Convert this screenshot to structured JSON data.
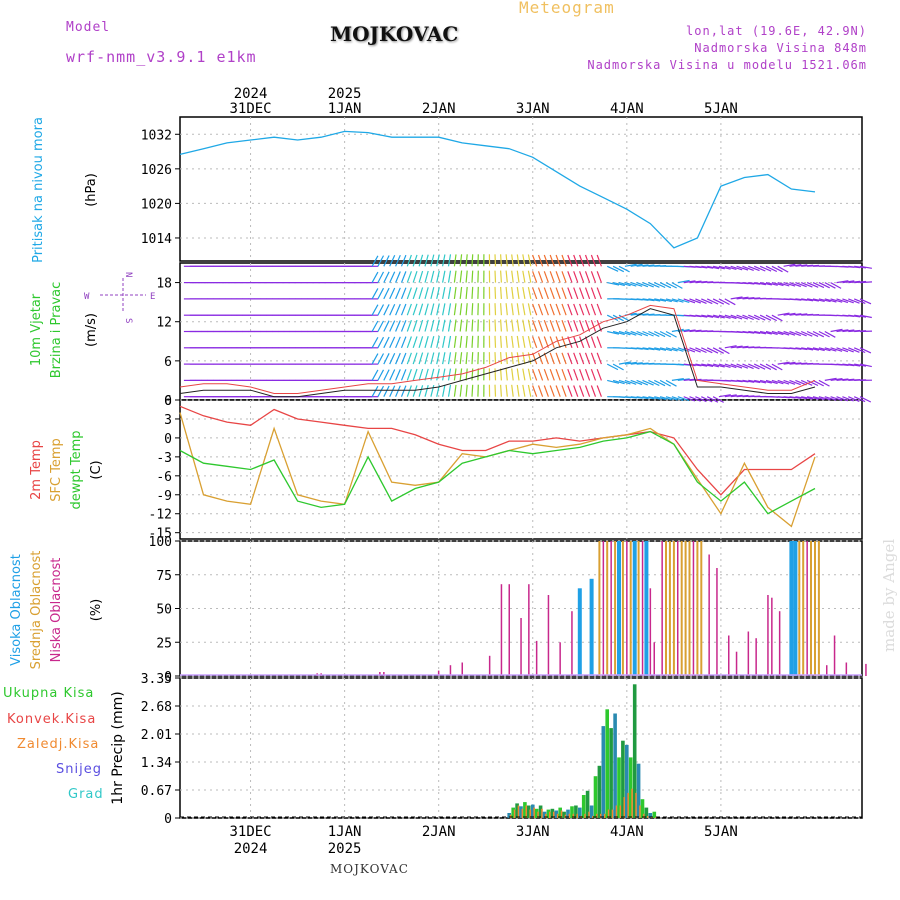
{
  "header": {
    "model_label": "Model",
    "model_value": "wrf-nmm_v3.9.1  e1km",
    "title": "MOJKOVAC",
    "meteogram_label": "Meteogram",
    "lonlat": "lon,lat (19.6E, 42.9N)",
    "elevation": "Nadmorska Visina 848m",
    "model_elevation": "Nadmorska Visina u modelu 1521.06m"
  },
  "footer": {
    "station": "MOJKOVAC",
    "credit": "made by Angel"
  },
  "colors": {
    "pressure": "#1fa8e6",
    "temp2m": "#e84545",
    "sfc": "#d9a032",
    "dewpt": "#2ec82e",
    "low_cloud": "#c8288c",
    "mid_cloud": "#d9a032",
    "high_cloud": "#1fa0e6",
    "total_precip": "#2ec82e",
    "conv_precip": "#e84545",
    "frz_precip": "#f08a30",
    "snow": "#5a4ee0",
    "grad": "#30c8c8"
  },
  "time_axis": {
    "top_labels": [
      {
        "day": "31DEC",
        "year": "2024"
      },
      {
        "day": "1JAN",
        "year": "2025"
      },
      {
        "day": "2JAN",
        "year": ""
      },
      {
        "day": "3JAN",
        "year": ""
      },
      {
        "day": "4JAN",
        "year": ""
      },
      {
        "day": "5JAN",
        "year": ""
      }
    ]
  },
  "panels": {
    "pressure": {
      "label": "Pritisak na nivou mora",
      "unit": "(hPa)"
    },
    "wind": {
      "label1": "10m Vjetar",
      "label2": "Brzina i Pravac",
      "unit": "(m/s)",
      "compass_n": "N",
      "compass_w": "W",
      "compass_e": "E",
      "compass_s": "S"
    },
    "temp": {
      "label1": "2m Temp",
      "label2": "SFC Temp",
      "label3": "dewpt Temp",
      "unit": "(C)"
    },
    "cloud": {
      "label1": "Visoka Oblacnost",
      "label2": "Srednja Oblacnost",
      "label3": "Niska Oblacnost",
      "unit": "(%)"
    },
    "precip": {
      "unit": "1hr Precip (mm)"
    }
  },
  "precip_legend": [
    "Ukupna Kisa",
    "Konvek.Kisa",
    "Zaledj.Kisa",
    "Snijeg",
    "Grad"
  ],
  "chart_data": [
    {
      "type": "line",
      "name": "pressure",
      "x_hours": [
        0,
        6,
        12,
        18,
        24,
        30,
        36,
        42,
        48,
        54,
        60,
        66,
        72,
        78,
        84,
        90,
        96,
        102,
        108,
        114,
        120,
        126,
        132,
        138,
        144,
        150,
        156,
        162
      ],
      "values": [
        1028.5,
        1029.5,
        1030.5,
        1031,
        1031.5,
        1031,
        1031.5,
        1032.5,
        1032.3,
        1031.5,
        1031.5,
        1031.5,
        1030.5,
        1030,
        1029.5,
        1028,
        1025.5,
        1023,
        1021,
        1019,
        1016.5,
        1012.3,
        1014,
        1023,
        1024.5,
        1025,
        1022.5,
        1022
      ],
      "ylim": [
        1010,
        1035
      ],
      "yticks": [
        1014,
        1020,
        1026,
        1032
      ]
    },
    {
      "type": "line",
      "name": "wind_speed",
      "x_hours": [
        0,
        6,
        12,
        18,
        24,
        30,
        36,
        42,
        48,
        54,
        60,
        66,
        72,
        78,
        84,
        90,
        96,
        102,
        108,
        114,
        120,
        126,
        132,
        138,
        144,
        150,
        156,
        162
      ],
      "series": [
        {
          "name": "speed",
          "values": [
            1,
            1.5,
            1.5,
            1.5,
            0.5,
            0.5,
            1,
            1.5,
            1.5,
            1.5,
            1.5,
            2,
            3,
            4,
            5,
            6,
            8,
            9,
            11,
            12,
            14,
            13,
            2,
            2,
            1.5,
            1,
            1,
            2
          ]
        },
        {
          "name": "gust",
          "values": [
            2,
            2.5,
            2.5,
            2,
            1,
            1,
            1.5,
            2,
            2.5,
            2.5,
            3,
            3.5,
            4,
            5,
            6.5,
            7,
            9,
            10,
            12,
            13,
            14.5,
            14,
            3,
            2.5,
            2,
            1.5,
            1.5,
            3
          ]
        }
      ],
      "ylim": [
        0,
        21
      ],
      "yticks": [
        0,
        6,
        12,
        18
      ]
    },
    {
      "type": "line",
      "name": "temperature",
      "x_hours": [
        0,
        6,
        12,
        18,
        24,
        30,
        36,
        42,
        48,
        54,
        60,
        66,
        72,
        78,
        84,
        90,
        96,
        102,
        108,
        114,
        120,
        126,
        132,
        138,
        144,
        150,
        156,
        162
      ],
      "series": [
        {
          "name": "2m Temp",
          "values": [
            5,
            3.5,
            2.5,
            2,
            4.5,
            3,
            2.5,
            2,
            1.5,
            1.5,
            0.5,
            -1,
            -2,
            -2,
            -0.5,
            -0.5,
            0,
            -0.5,
            0,
            0.5,
            1,
            0,
            -5,
            -9,
            -5,
            -5,
            -5,
            -2.5
          ]
        },
        {
          "name": "SFC Temp",
          "values": [
            4,
            -9,
            -10,
            -10.5,
            1.5,
            -9,
            -10,
            -10.5,
            1,
            -7,
            -7.5,
            -7,
            -2.5,
            -3,
            -2,
            -1,
            -1.5,
            -1,
            0,
            0.5,
            1.5,
            -1,
            -6.5,
            -12,
            -4,
            -11,
            -14,
            -3
          ]
        },
        {
          "name": "dewpt Temp",
          "values": [
            -2,
            -4,
            -4.5,
            -5,
            -3.5,
            -10,
            -11,
            -10.5,
            -3,
            -10,
            -8,
            -7,
            -4,
            -3,
            -2,
            -2.5,
            -2,
            -1.5,
            -0.5,
            0,
            1,
            -1,
            -7,
            -10,
            -7,
            -12,
            -10,
            -8
          ]
        }
      ],
      "ylim": [
        -16,
        6
      ],
      "yticks": [
        -15,
        -12,
        -9,
        -6,
        -3,
        0,
        3,
        6
      ]
    },
    {
      "type": "bar",
      "name": "cloud_cover",
      "ylim": [
        0,
        100
      ],
      "yticks": [
        0,
        25,
        50,
        75,
        100
      ],
      "bars": [
        {
          "t": 35,
          "type": "low",
          "v": 2
        },
        {
          "t": 36,
          "type": "low",
          "v": 2
        },
        {
          "t": 51,
          "type": "low",
          "v": 3
        },
        {
          "t": 52,
          "type": "low",
          "v": 3
        },
        {
          "t": 66,
          "type": "low",
          "v": 4
        },
        {
          "t": 69,
          "type": "low",
          "v": 8
        },
        {
          "t": 72,
          "type": "low",
          "v": 10
        },
        {
          "t": 79,
          "type": "low",
          "v": 15
        },
        {
          "t": 82,
          "type": "low",
          "v": 68
        },
        {
          "t": 84,
          "type": "low",
          "v": 68
        },
        {
          "t": 87,
          "type": "low",
          "v": 43
        },
        {
          "t": 89,
          "type": "low",
          "v": 68
        },
        {
          "t": 91,
          "type": "low",
          "v": 26
        },
        {
          "t": 94,
          "type": "low",
          "v": 60
        },
        {
          "t": 97,
          "type": "low",
          "v": 25
        },
        {
          "t": 100,
          "type": "low",
          "v": 48
        },
        {
          "t": 102,
          "type": "high",
          "v": 65
        },
        {
          "t": 105,
          "type": "high",
          "v": 72
        },
        {
          "t": 107,
          "type": "mid",
          "v": 100
        },
        {
          "t": 108,
          "type": "low",
          "v": 100
        },
        {
          "t": 109,
          "type": "mid",
          "v": 100
        },
        {
          "t": 110,
          "type": "low",
          "v": 100
        },
        {
          "t": 111,
          "type": "mid",
          "v": 100
        },
        {
          "t": 112,
          "type": "high",
          "v": 100
        },
        {
          "t": 113,
          "type": "mid",
          "v": 100
        },
        {
          "t": 114,
          "type": "low",
          "v": 100
        },
        {
          "t": 115,
          "type": "mid",
          "v": 100
        },
        {
          "t": 116,
          "type": "high",
          "v": 100
        },
        {
          "t": 117,
          "type": "mid",
          "v": 100
        },
        {
          "t": 118,
          "type": "low",
          "v": 100
        },
        {
          "t": 119,
          "type": "high",
          "v": 100
        },
        {
          "t": 120,
          "type": "low",
          "v": 65
        },
        {
          "t": 121,
          "type": "low",
          "v": 25
        },
        {
          "t": 123,
          "type": "low",
          "v": 100
        },
        {
          "t": 124,
          "type": "mid",
          "v": 100
        },
        {
          "t": 125,
          "type": "mid",
          "v": 100
        },
        {
          "t": 126,
          "type": "mid",
          "v": 100
        },
        {
          "t": 127,
          "type": "low",
          "v": 100
        },
        {
          "t": 128,
          "type": "mid",
          "v": 100
        },
        {
          "t": 129,
          "type": "mid",
          "v": 100
        },
        {
          "t": 130,
          "type": "mid",
          "v": 100
        },
        {
          "t": 131,
          "type": "low",
          "v": 100
        },
        {
          "t": 132,
          "type": "mid",
          "v": 100
        },
        {
          "t": 133,
          "type": "mid",
          "v": 100
        },
        {
          "t": 135,
          "type": "low",
          "v": 90
        },
        {
          "t": 137,
          "type": "low",
          "v": 80
        },
        {
          "t": 140,
          "type": "low",
          "v": 30
        },
        {
          "t": 142,
          "type": "low",
          "v": 18
        },
        {
          "t": 145,
          "type": "low",
          "v": 33
        },
        {
          "t": 147,
          "type": "low",
          "v": 28
        },
        {
          "t": 150,
          "type": "low",
          "v": 60
        },
        {
          "t": 151,
          "type": "low",
          "v": 58
        },
        {
          "t": 153,
          "type": "low",
          "v": 48
        },
        {
          "t": 156,
          "type": "high",
          "v": 100
        },
        {
          "t": 157,
          "type": "high",
          "v": 100
        },
        {
          "t": 158,
          "type": "mid",
          "v": 100
        },
        {
          "t": 159,
          "type": "mid",
          "v": 100
        },
        {
          "t": 160,
          "type": "low",
          "v": 100
        },
        {
          "t": 161,
          "type": "mid",
          "v": 100
        },
        {
          "t": 162,
          "type": "mid",
          "v": 100
        },
        {
          "t": 163,
          "type": "mid",
          "v": 100
        },
        {
          "t": 165,
          "type": "low",
          "v": 8
        },
        {
          "t": 167,
          "type": "low",
          "v": 30
        },
        {
          "t": 170,
          "type": "low",
          "v": 10
        },
        {
          "t": 175,
          "type": "low",
          "v": 9
        }
      ]
    },
    {
      "type": "bar",
      "name": "precip_1hr",
      "ylim": [
        0,
        3.35
      ],
      "yticks": [
        0,
        0.67,
        1.34,
        2.01,
        2.68,
        3.35
      ],
      "bars": [
        {
          "t": 84,
          "total": 0.12,
          "conv": 0.08
        },
        {
          "t": 85,
          "total": 0.25,
          "conv": 0.2
        },
        {
          "t": 86,
          "total": 0.35,
          "conv": 0.3
        },
        {
          "t": 87,
          "total": 0.28,
          "conv": 0.22
        },
        {
          "t": 88,
          "total": 0.38,
          "conv": 0.3
        },
        {
          "t": 89,
          "total": 0.3,
          "conv": 0.2
        },
        {
          "t": 90,
          "total": 0.32,
          "conv": 0.25
        },
        {
          "t": 91,
          "total": 0.22,
          "conv": 0.15
        },
        {
          "t": 92,
          "total": 0.3,
          "conv": 0.22
        },
        {
          "t": 93,
          "total": 0.15,
          "conv": 0.1
        },
        {
          "t": 94,
          "total": 0.2,
          "conv": 0.15
        },
        {
          "t": 95,
          "total": 0.22,
          "conv": 0.15
        },
        {
          "t": 96,
          "total": 0.18,
          "conv": 0.1
        },
        {
          "t": 97,
          "total": 0.25,
          "conv": 0.18
        },
        {
          "t": 98,
          "total": 0.15,
          "conv": 0.08
        },
        {
          "t": 99,
          "total": 0.2,
          "conv": 0.1
        },
        {
          "t": 100,
          "total": 0.28,
          "conv": 0.1
        },
        {
          "t": 101,
          "total": 0.3,
          "conv": 0.1
        },
        {
          "t": 102,
          "total": 0.25,
          "conv": 0.05
        },
        {
          "t": 103,
          "total": 0.55,
          "conv": 0.1
        },
        {
          "t": 104,
          "total": 0.65,
          "conv": 0.15
        },
        {
          "t": 105,
          "total": 0.3,
          "conv": 0.05
        },
        {
          "t": 106,
          "total": 1.0,
          "conv": 0.1
        },
        {
          "t": 107,
          "total": 1.25,
          "conv": 0.1
        },
        {
          "t": 108,
          "total": 2.2,
          "conv": 0.1
        },
        {
          "t": 109,
          "total": 2.6,
          "conv": 0.2
        },
        {
          "t": 110,
          "total": 2.15,
          "conv": 0.2
        },
        {
          "t": 111,
          "total": 2.5,
          "conv": 0.3
        },
        {
          "t": 112,
          "total": 1.45,
          "conv": 0.3
        },
        {
          "t": 113,
          "total": 1.85,
          "conv": 0.5
        },
        {
          "t": 114,
          "total": 1.75,
          "conv": 0.6
        },
        {
          "t": 115,
          "total": 1.45,
          "conv": 0.7
        },
        {
          "t": 116,
          "total": 3.2,
          "conv": 0.6
        },
        {
          "t": 117,
          "total": 1.3,
          "conv": 0.3
        },
        {
          "t": 118,
          "total": 0.45,
          "conv": 0.1
        },
        {
          "t": 119,
          "total": 0.25,
          "conv": 0.05
        },
        {
          "t": 120,
          "total": 0.12,
          "conv": 0.02
        },
        {
          "t": 121,
          "total": 0.15,
          "conv": 0.02
        }
      ]
    }
  ]
}
